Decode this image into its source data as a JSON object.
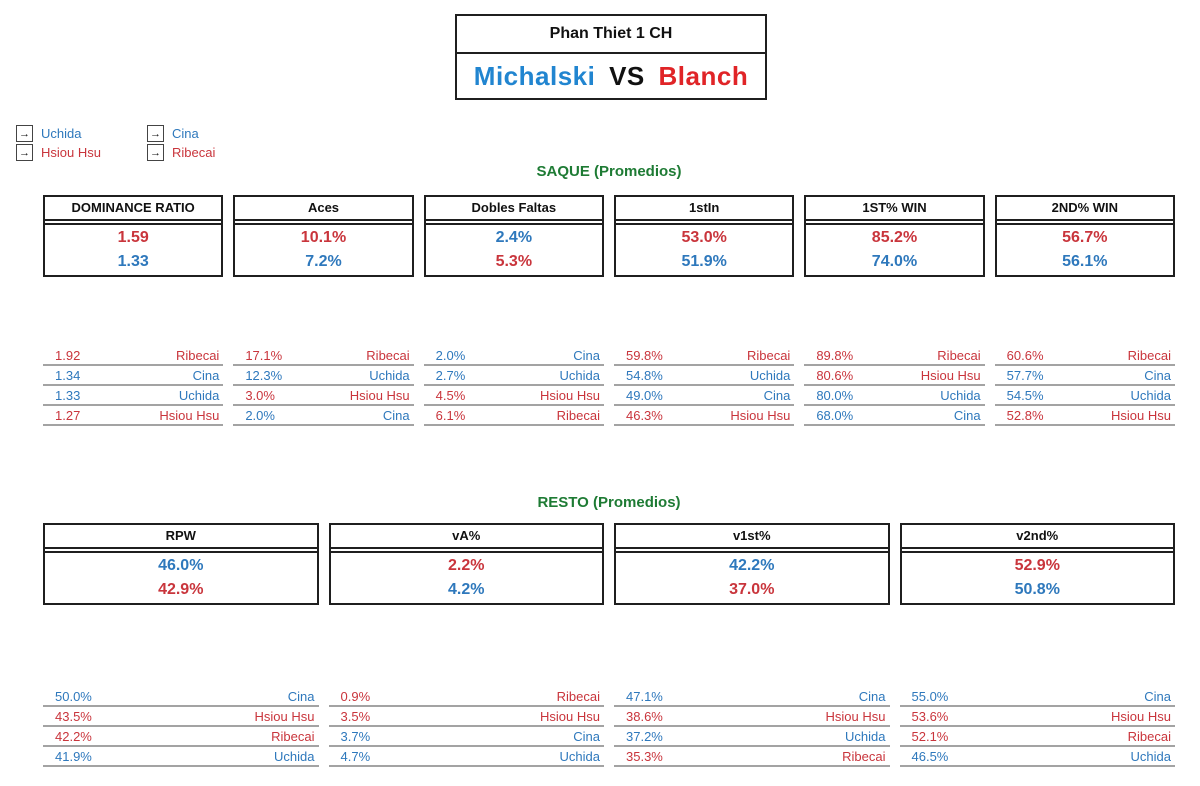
{
  "colors": {
    "blue": "#2E78BC",
    "red": "#C9353C",
    "title_blue": "#2185D0",
    "title_red": "#E02427",
    "green": "#1E7B34"
  },
  "title": {
    "tournament": "Phan Thiet 1 CH",
    "player1": "Michalski",
    "vs": "VS",
    "player2": "Blanch"
  },
  "legend": {
    "arrow_icon": "→",
    "groups": [
      {
        "items": [
          {
            "name": "Uchida",
            "color": "blue"
          },
          {
            "name": "Hsiou Hsu",
            "color": "red"
          }
        ]
      },
      {
        "items": [
          {
            "name": "Cina",
            "color": "blue"
          },
          {
            "name": "Ribecai",
            "color": "red"
          }
        ]
      }
    ]
  },
  "sections": {
    "saque": {
      "heading": "SAQUE (Promedios)",
      "stats": [
        {
          "label": "DOMINANCE RATIO",
          "values": [
            {
              "text": "1.59",
              "color": "red"
            },
            {
              "text": "1.33",
              "color": "blue"
            }
          ],
          "ranking": [
            {
              "value": "1.92",
              "name": "Ribecai",
              "color": "red"
            },
            {
              "value": "1.34",
              "name": "Cina",
              "color": "blue"
            },
            {
              "value": "1.33",
              "name": "Uchida",
              "color": "blue"
            },
            {
              "value": "1.27",
              "name": "Hsiou Hsu",
              "color": "red"
            }
          ]
        },
        {
          "label": "Aces",
          "values": [
            {
              "text": "10.1%",
              "color": "red"
            },
            {
              "text": "7.2%",
              "color": "blue"
            }
          ],
          "ranking": [
            {
              "value": "17.1%",
              "name": "Ribecai",
              "color": "red"
            },
            {
              "value": "12.3%",
              "name": "Uchida",
              "color": "blue"
            },
            {
              "value": "3.0%",
              "name": "Hsiou Hsu",
              "color": "red"
            },
            {
              "value": "2.0%",
              "name": "Cina",
              "color": "blue"
            }
          ]
        },
        {
          "label": "Dobles Faltas",
          "values": [
            {
              "text": "2.4%",
              "color": "blue"
            },
            {
              "text": "5.3%",
              "color": "red"
            }
          ],
          "ranking": [
            {
              "value": "2.0%",
              "name": "Cina",
              "color": "blue"
            },
            {
              "value": "2.7%",
              "name": "Uchida",
              "color": "blue"
            },
            {
              "value": "4.5%",
              "name": "Hsiou Hsu",
              "color": "red"
            },
            {
              "value": "6.1%",
              "name": "Ribecai",
              "color": "red"
            }
          ]
        },
        {
          "label": "1stIn",
          "values": [
            {
              "text": "53.0%",
              "color": "red"
            },
            {
              "text": "51.9%",
              "color": "blue"
            }
          ],
          "ranking": [
            {
              "value": "59.8%",
              "name": "Ribecai",
              "color": "red"
            },
            {
              "value": "54.8%",
              "name": "Uchida",
              "color": "blue"
            },
            {
              "value": "49.0%",
              "name": "Cina",
              "color": "blue"
            },
            {
              "value": "46.3%",
              "name": "Hsiou Hsu",
              "color": "red"
            }
          ]
        },
        {
          "label": "1ST% WIN",
          "values": [
            {
              "text": "85.2%",
              "color": "red"
            },
            {
              "text": "74.0%",
              "color": "blue"
            }
          ],
          "ranking": [
            {
              "value": "89.8%",
              "name": "Ribecai",
              "color": "red"
            },
            {
              "value": "80.6%",
              "name": "Hsiou Hsu",
              "color": "red"
            },
            {
              "value": "80.0%",
              "name": "Uchida",
              "color": "blue"
            },
            {
              "value": "68.0%",
              "name": "Cina",
              "color": "blue"
            }
          ]
        },
        {
          "label": "2ND% WIN",
          "values": [
            {
              "text": "56.7%",
              "color": "red"
            },
            {
              "text": "56.1%",
              "color": "blue"
            }
          ],
          "ranking": [
            {
              "value": "60.6%",
              "name": "Ribecai",
              "color": "red"
            },
            {
              "value": "57.7%",
              "name": "Cina",
              "color": "blue"
            },
            {
              "value": "54.5%",
              "name": "Uchida",
              "color": "blue"
            },
            {
              "value": "52.8%",
              "name": "Hsiou Hsu",
              "color": "red"
            }
          ]
        }
      ]
    },
    "resto": {
      "heading": "RESTO (Promedios)",
      "stats": [
        {
          "label": "RPW",
          "values": [
            {
              "text": "46.0%",
              "color": "blue"
            },
            {
              "text": "42.9%",
              "color": "red"
            }
          ],
          "ranking": [
            {
              "value": "50.0%",
              "name": "Cina",
              "color": "blue"
            },
            {
              "value": "43.5%",
              "name": "Hsiou Hsu",
              "color": "red"
            },
            {
              "value": "42.2%",
              "name": "Ribecai",
              "color": "red"
            },
            {
              "value": "41.9%",
              "name": "Uchida",
              "color": "blue"
            }
          ]
        },
        {
          "label": "vA%",
          "values": [
            {
              "text": "2.2%",
              "color": "red"
            },
            {
              "text": "4.2%",
              "color": "blue"
            }
          ],
          "ranking": [
            {
              "value": "0.9%",
              "name": "Ribecai",
              "color": "red"
            },
            {
              "value": "3.5%",
              "name": "Hsiou Hsu",
              "color": "red"
            },
            {
              "value": "3.7%",
              "name": "Cina",
              "color": "blue"
            },
            {
              "value": "4.7%",
              "name": "Uchida",
              "color": "blue"
            }
          ]
        },
        {
          "label": "v1st%",
          "values": [
            {
              "text": "42.2%",
              "color": "blue"
            },
            {
              "text": "37.0%",
              "color": "red"
            }
          ],
          "ranking": [
            {
              "value": "47.1%",
              "name": "Cina",
              "color": "blue"
            },
            {
              "value": "38.6%",
              "name": "Hsiou Hsu",
              "color": "red"
            },
            {
              "value": "37.2%",
              "name": "Uchida",
              "color": "blue"
            },
            {
              "value": "35.3%",
              "name": "Ribecai",
              "color": "red"
            }
          ]
        },
        {
          "label": "v2nd%",
          "values": [
            {
              "text": "52.9%",
              "color": "red"
            },
            {
              "text": "50.8%",
              "color": "blue"
            }
          ],
          "ranking": [
            {
              "value": "55.0%",
              "name": "Cina",
              "color": "blue"
            },
            {
              "value": "53.6%",
              "name": "Hsiou Hsu",
              "color": "red"
            },
            {
              "value": "52.1%",
              "name": "Ribecai",
              "color": "red"
            },
            {
              "value": "46.5%",
              "name": "Uchida",
              "color": "blue"
            }
          ]
        }
      ]
    }
  }
}
